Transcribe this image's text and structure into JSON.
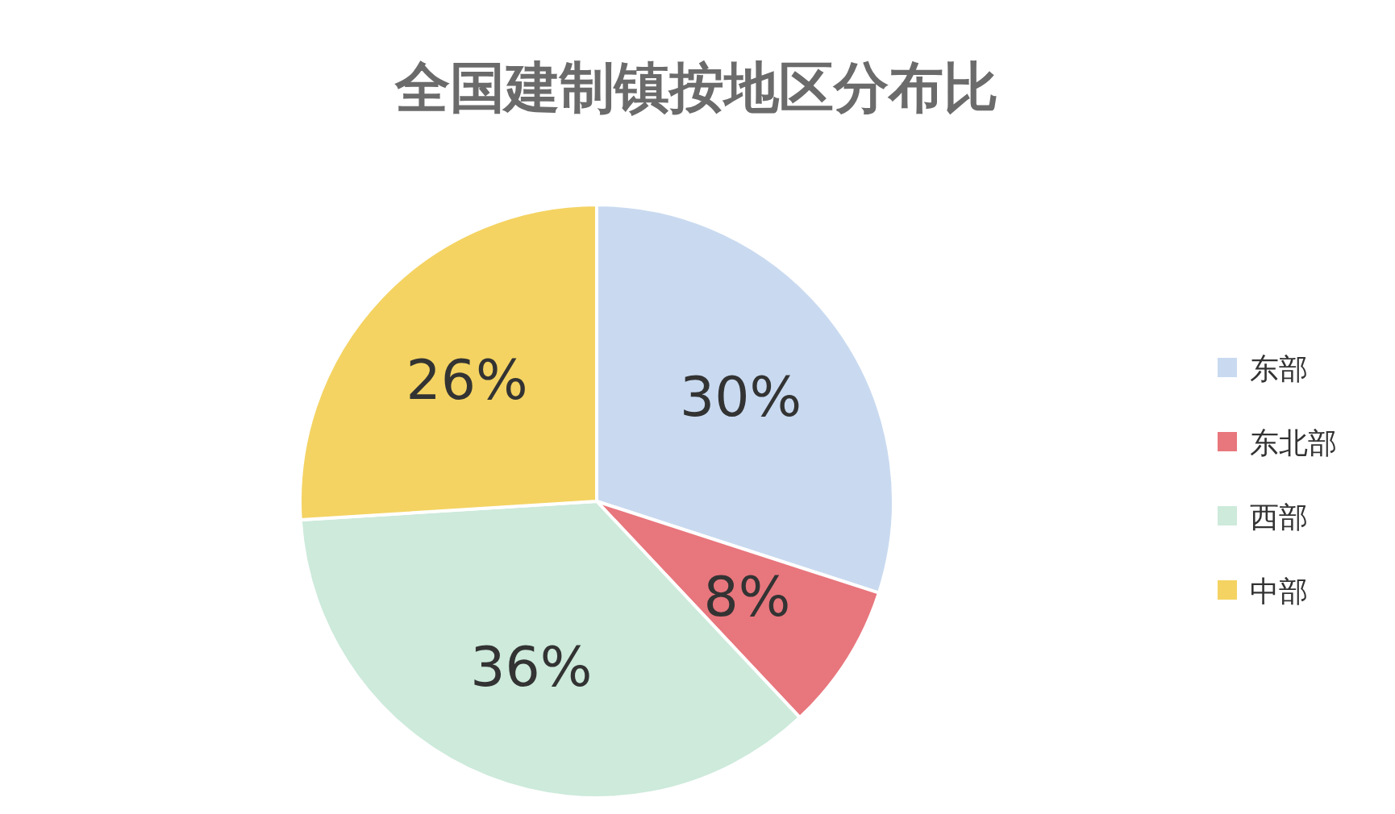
{
  "chart_data": {
    "type": "pie",
    "title": "全国建制镇按地区分布比",
    "categories": [
      "东部",
      "东北部",
      "西部",
      "中部"
    ],
    "values": [
      30,
      8,
      36,
      26
    ],
    "colors": [
      "#c9daf0",
      "#e8767d",
      "#cdeadb",
      "#f4d362"
    ],
    "value_labels": [
      "30%",
      "8%",
      "36%",
      "26%"
    ],
    "legend": "right"
  }
}
